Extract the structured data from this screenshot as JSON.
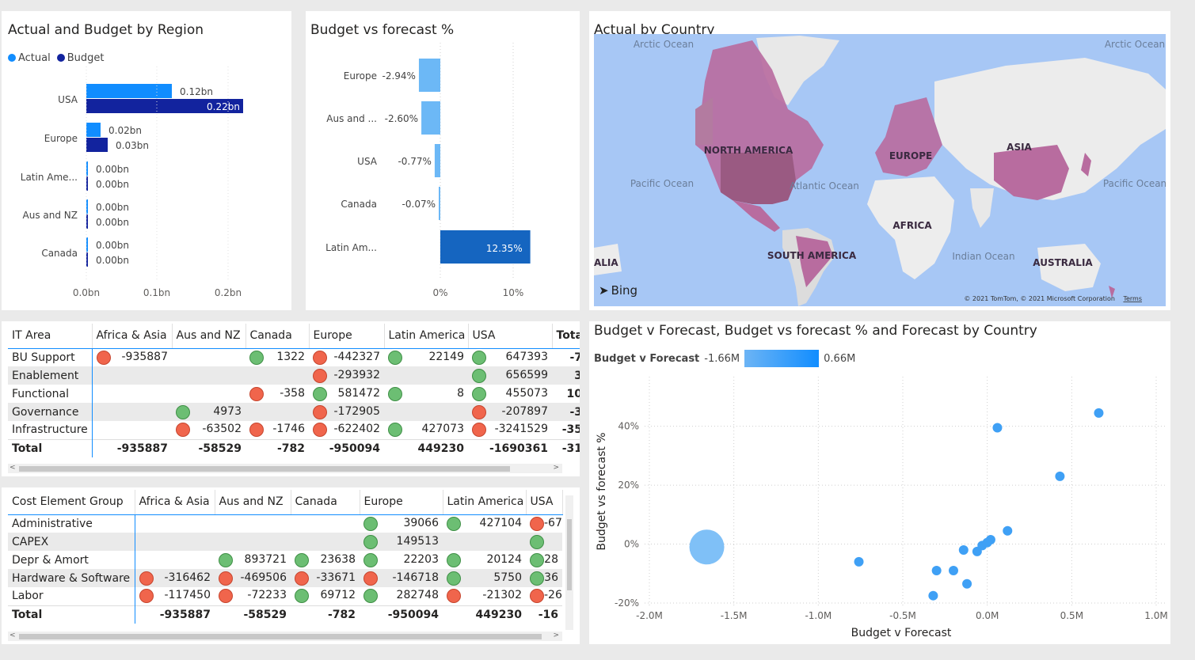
{
  "region_chart": {
    "title": "Actual and Budget by Region",
    "legend": [
      {
        "name": "Actual",
        "color": "#118dff"
      },
      {
        "name": "Budget",
        "color": "#12239e"
      }
    ],
    "categories": [
      "USA",
      "Europe",
      "Latin Ame...",
      "Aus and NZ",
      "Canada"
    ],
    "actual_labels": [
      "0.12bn",
      "0.02bn",
      "0.00bn",
      "0.00bn",
      "0.00bn"
    ],
    "budget_labels": [
      "0.22bn",
      "0.03bn",
      "0.00bn",
      "0.00bn",
      "0.00bn"
    ],
    "x_ticks": [
      "0.0bn",
      "0.1bn",
      "0.2bn"
    ]
  },
  "forecast_chart": {
    "title": "Budget vs forecast %",
    "categories": [
      "Europe",
      "Aus and ...",
      "USA",
      "Canada",
      "Latin Am..."
    ],
    "value_labels": [
      "-2.94%",
      "-2.60%",
      "-0.77%",
      "-0.07%",
      "12.35%"
    ],
    "x_ticks": [
      "0%",
      "10%"
    ]
  },
  "map": {
    "title": "Actual by Country",
    "labels": {
      "arctic_left": "Arctic Ocean",
      "arctic_right": "Arctic Ocean",
      "north_america": "NORTH AMERICA",
      "europe": "EUROPE",
      "asia": "ASIA",
      "pacific_left": "Pacific Ocean",
      "pacific_right": "Pacific Ocean",
      "atlantic": "Atlantic Ocean",
      "africa": "AFRICA",
      "south_america": "SOUTH AMERICA",
      "indian": "Indian Ocean",
      "australia": "AUSTRALIA",
      "australia_clip": "ALIA",
      "bing": "Bing",
      "copyright": "© 2021 TomTom, © 2021 Microsoft Corporation",
      "terms": "Terms"
    }
  },
  "it_matrix": {
    "columns": [
      "IT Area",
      "Africa & Asia",
      "Aus and NZ",
      "Canada",
      "Europe",
      "Latin America",
      "USA",
      "Tota"
    ],
    "rows": [
      {
        "label": "BU Support",
        "cells": [
          {
            "v": "-935887",
            "s": "r"
          },
          {
            "v": "",
            "s": ""
          },
          {
            "v": "1322",
            "s": "g"
          },
          {
            "v": "-442327",
            "s": "r"
          },
          {
            "v": "22149",
            "s": "g"
          },
          {
            "v": "647393",
            "s": "g"
          },
          {
            "v": "-7",
            "s": ""
          }
        ]
      },
      {
        "label": "Enablement",
        "cells": [
          {
            "v": "",
            "s": ""
          },
          {
            "v": "",
            "s": ""
          },
          {
            "v": "",
            "s": ""
          },
          {
            "v": "-293932",
            "s": "r"
          },
          {
            "v": "",
            "s": ""
          },
          {
            "v": "656599",
            "s": "g"
          },
          {
            "v": "3",
            "s": ""
          }
        ]
      },
      {
        "label": "Functional",
        "cells": [
          {
            "v": "",
            "s": ""
          },
          {
            "v": "",
            "s": ""
          },
          {
            "v": "-358",
            "s": "r"
          },
          {
            "v": "581472",
            "s": "g"
          },
          {
            "v": "8",
            "s": "g"
          },
          {
            "v": "455073",
            "s": "g"
          },
          {
            "v": "10",
            "s": ""
          }
        ]
      },
      {
        "label": "Governance",
        "cells": [
          {
            "v": "",
            "s": ""
          },
          {
            "v": "4973",
            "s": "g"
          },
          {
            "v": "",
            "s": ""
          },
          {
            "v": "-172905",
            "s": "r"
          },
          {
            "v": "",
            "s": ""
          },
          {
            "v": "-207897",
            "s": "r"
          },
          {
            "v": "-3",
            "s": ""
          }
        ]
      },
      {
        "label": "Infrastructure",
        "cells": [
          {
            "v": "",
            "s": ""
          },
          {
            "v": "-63502",
            "s": "r"
          },
          {
            "v": "-1746",
            "s": "r"
          },
          {
            "v": "-622402",
            "s": "r"
          },
          {
            "v": "427073",
            "s": "g"
          },
          {
            "v": "-3241529",
            "s": "r"
          },
          {
            "v": "-35",
            "s": ""
          }
        ]
      }
    ],
    "total": {
      "label": "Total",
      "cells": [
        "-935887",
        "-58529",
        "-782",
        "-950094",
        "449230",
        "-1690361",
        "-31"
      ]
    }
  },
  "cost_matrix": {
    "columns": [
      "Cost Element Group",
      "Africa & Asia",
      "Aus and NZ",
      "Canada",
      "Europe",
      "Latin America",
      "USA"
    ],
    "rows": [
      {
        "label": "Administrative",
        "cells": [
          {
            "v": "",
            "s": ""
          },
          {
            "v": "",
            "s": ""
          },
          {
            "v": "",
            "s": ""
          },
          {
            "v": "39066",
            "s": "g"
          },
          {
            "v": "427104",
            "s": "g"
          },
          {
            "v": "-67",
            "s": "r"
          }
        ]
      },
      {
        "label": "CAPEX",
        "cells": [
          {
            "v": "",
            "s": ""
          },
          {
            "v": "",
            "s": ""
          },
          {
            "v": "",
            "s": ""
          },
          {
            "v": "149513",
            "s": "g"
          },
          {
            "v": "",
            "s": ""
          },
          {
            "v": "",
            "s": "g"
          }
        ]
      },
      {
        "label": "Depr & Amort",
        "cells": [
          {
            "v": "",
            "s": ""
          },
          {
            "v": "893721",
            "s": "g"
          },
          {
            "v": "23638",
            "s": "g"
          },
          {
            "v": "22203",
            "s": "g"
          },
          {
            "v": "20124",
            "s": "g"
          },
          {
            "v": "28",
            "s": "g"
          }
        ]
      },
      {
        "label": "Hardware & Software",
        "cells": [
          {
            "v": "-316462",
            "s": "r"
          },
          {
            "v": "-469506",
            "s": "r"
          },
          {
            "v": "-33671",
            "s": "r"
          },
          {
            "v": "-146718",
            "s": "r"
          },
          {
            "v": "5750",
            "s": "g"
          },
          {
            "v": "36",
            "s": "g"
          }
        ]
      },
      {
        "label": "Labor",
        "cells": [
          {
            "v": "-117450",
            "s": "r"
          },
          {
            "v": "-72233",
            "s": "r"
          },
          {
            "v": "69712",
            "s": "g"
          },
          {
            "v": "282748",
            "s": "g"
          },
          {
            "v": "-21302",
            "s": "r"
          },
          {
            "v": "-26",
            "s": "r"
          }
        ]
      }
    ],
    "total": {
      "label": "Total",
      "cells": [
        "-935887",
        "-58529",
        "-782",
        "-950094",
        "449230",
        "-16"
      ]
    }
  },
  "scatter": {
    "title": "Budget v Forecast, Budget vs forecast % and Forecast by Country",
    "legend_label": "Budget v Forecast",
    "legend_min": "-1.66M",
    "legend_max": "0.66M",
    "xlabel": "Budget v Forecast",
    "ylabel": "Budget vs forecast %",
    "x_ticks": [
      "-2.0M",
      "-1.5M",
      "-1.0M",
      "-0.5M",
      "0.0M",
      "0.5M",
      "1.0M"
    ],
    "y_ticks": [
      "40%",
      "20%",
      "0%",
      "-20%"
    ]
  },
  "chart_data": [
    {
      "type": "bar",
      "title": "Actual and Budget by Region",
      "categories": [
        "USA",
        "Europe",
        "Latin Ame...",
        "Aus and NZ",
        "Canada"
      ],
      "series": [
        {
          "name": "Actual",
          "values": [
            0.12,
            0.02,
            0.0,
            0.0,
            0.0
          ]
        },
        {
          "name": "Budget",
          "values": [
            0.22,
            0.03,
            0.0,
            0.0,
            0.0
          ]
        }
      ],
      "xlim": [
        0,
        0.22
      ],
      "unit": "bn"
    },
    {
      "type": "bar",
      "title": "Budget vs forecast %",
      "categories": [
        "Europe",
        "Aus and ...",
        "USA",
        "Canada",
        "Latin Am..."
      ],
      "values": [
        -2.94,
        -2.6,
        -0.77,
        -0.07,
        12.35
      ],
      "xlim": [
        -4,
        12.5
      ],
      "unit": "%"
    },
    {
      "type": "scatter",
      "title": "Budget v Forecast, Budget vs forecast % and Forecast by Country",
      "xlabel": "Budget v Forecast",
      "ylabel": "Budget vs forecast %",
      "xlim": [
        -2.0,
        1.0
      ],
      "ylim": [
        -20,
        45
      ],
      "x_unit": "M",
      "points": [
        {
          "x": -1.66,
          "y": -1,
          "size": "large"
        },
        {
          "x": -0.76,
          "y": -6
        },
        {
          "x": -0.3,
          "y": -9
        },
        {
          "x": -0.2,
          "y": -9
        },
        {
          "x": -0.12,
          "y": -13.5
        },
        {
          "x": -0.32,
          "y": -17.5
        },
        {
          "x": -0.14,
          "y": -2
        },
        {
          "x": -0.06,
          "y": -2.5
        },
        {
          "x": -0.03,
          "y": -0.5
        },
        {
          "x": 0.0,
          "y": 0.5
        },
        {
          "x": 0.02,
          "y": 1.5
        },
        {
          "x": 0.12,
          "y": 4.5
        },
        {
          "x": 0.06,
          "y": 39.5
        },
        {
          "x": 0.43,
          "y": 23
        },
        {
          "x": 0.66,
          "y": 44.5
        }
      ]
    }
  ]
}
